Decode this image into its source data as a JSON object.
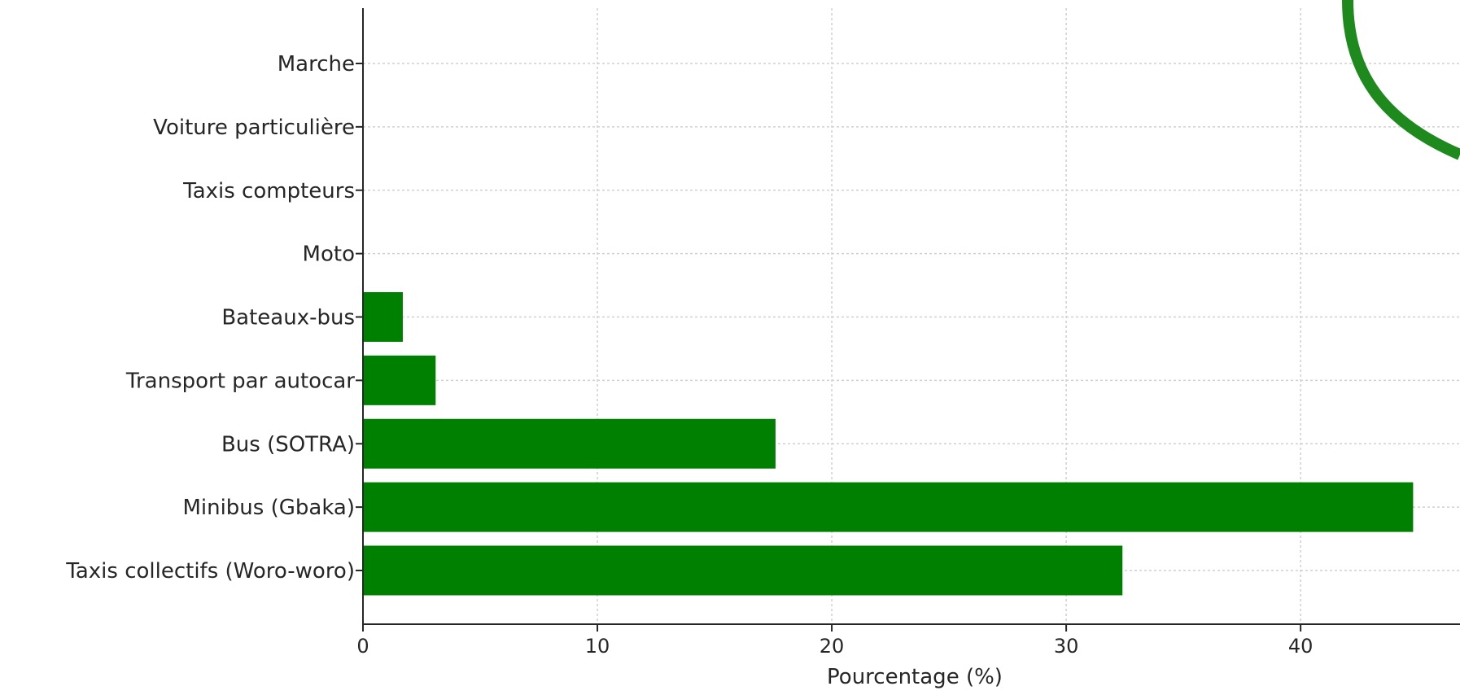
{
  "chart_data": {
    "type": "bar",
    "orientation": "horizontal",
    "title": "",
    "xlabel": "Pourcentage (%)",
    "ylabel": "",
    "xlim": [
      0,
      46.8
    ],
    "x_ticks": [
      0,
      10,
      20,
      30,
      40
    ],
    "grid": true,
    "bar_color": "#008000",
    "categories": [
      "Taxis collectifs (Woro-woro)",
      "Minibus (Gbaka)",
      "Bus (SOTRA)",
      "Transport par autocar",
      "Bateaux-bus",
      "Moto",
      "Taxis compteurs",
      "Voiture particulière",
      "Marche"
    ],
    "values": [
      32.4,
      44.8,
      17.6,
      3.1,
      1.7,
      0,
      0,
      0,
      0
    ]
  }
}
